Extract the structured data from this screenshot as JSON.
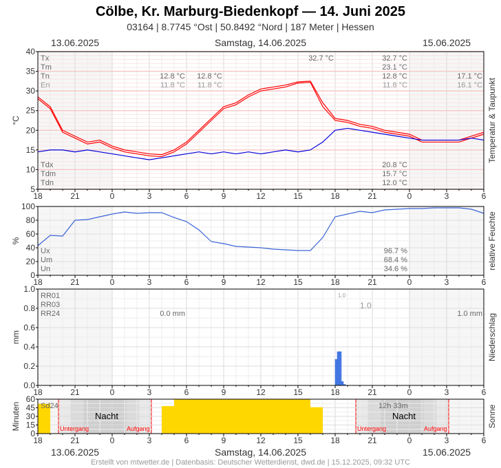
{
  "header": {
    "title": "Cölbe, Kr. Marburg-Biedenkopf  —  14. Juni 2025",
    "subtitle": "03164  |  8.7745 °Ost  |  50.8492 °Nord  |  187 Meter  |  Hessen",
    "date_left": "13.06.2025",
    "date_center": "Samstag, 14.06.2025",
    "date_right": "15.06.2025"
  },
  "footer": "Erstellt von mtwetter.de | Datenbasis: Deutscher Wetterdienst, dwd.de | 15.12.2025, 09:32 UTC",
  "colors": {
    "temperature": "#ff0000",
    "dewpoint": "#0000dd",
    "humidity": "#3a63d8",
    "precip": "#4a7ee8",
    "sun": "#ffd700",
    "sunset_line": "#ff0000"
  },
  "stats": {
    "temp": {
      "Tx": "Tx",
      "Tm": "Tm",
      "Tn": "Tn",
      "En": "En",
      "tx_day": "32.7 °C",
      "tx": "32.7 °C",
      "tm": "23.1 °C",
      "tn_a": "12.8 °C",
      "tn_b": "12.8 °C",
      "tn": "12.8 °C",
      "tn_next": "17.1 °C",
      "en_a": "11.8 °C",
      "en_b": "11.8 °C",
      "en": "11.8 °C",
      "en_next": "16.1 °C",
      "Tdx": "Tdx",
      "Tdm": "Tdm",
      "Tdn": "Tdn",
      "tdx": "20.8 °C",
      "tdm": "15.7 °C",
      "tdn": "12.0 °C"
    },
    "hum": {
      "Ux": "Ux",
      "Um": "Um",
      "Un": "Un",
      "ux": "96.7 %",
      "um": "68.4 %",
      "un": "34.6 %"
    },
    "rain": {
      "RR01": "RR01",
      "RR03": "RR03",
      "RR24": "RR24",
      "rr01": "1.0",
      "rr03": "1.0",
      "rr24_prev": "0.0 mm",
      "rr24": "1.0 mm"
    },
    "sun": {
      "Sd24": "Sd24",
      "duration": "12h 33m",
      "night": "Nacht",
      "sunset": "Untergang",
      "sunrise": "Aufgang"
    }
  },
  "chart_data": [
    {
      "type": "line",
      "ylabel": "°C",
      "right_label": "Temperatur & Taupunkt",
      "ylim": [
        5,
        40
      ],
      "yticks": [
        "5",
        "10",
        "15",
        "20",
        "25",
        "30",
        "35",
        "40"
      ],
      "x_tick_labels": [
        "18",
        "21",
        "0",
        "3",
        "6",
        "9",
        "12",
        "15",
        "18",
        "21",
        "0",
        "3",
        "6"
      ],
      "xlim": [
        "2025-06-13 18:00",
        "2025-06-15 06:00"
      ],
      "x": [
        "2025-06-13 18:00",
        "2025-06-13 19:00",
        "2025-06-13 20:00",
        "2025-06-13 21:00",
        "2025-06-13 22:00",
        "2025-06-13 23:00",
        "2025-06-14 00:00",
        "2025-06-14 01:00",
        "2025-06-14 02:00",
        "2025-06-14 03:00",
        "2025-06-14 04:00",
        "2025-06-14 05:00",
        "2025-06-14 06:00",
        "2025-06-14 07:00",
        "2025-06-14 08:00",
        "2025-06-14 09:00",
        "2025-06-14 10:00",
        "2025-06-14 11:00",
        "2025-06-14 12:00",
        "2025-06-14 13:00",
        "2025-06-14 14:00",
        "2025-06-14 15:00",
        "2025-06-14 16:00",
        "2025-06-14 17:00",
        "2025-06-14 18:00",
        "2025-06-14 19:00",
        "2025-06-14 20:00",
        "2025-06-14 21:00",
        "2025-06-14 22:00",
        "2025-06-14 23:00",
        "2025-06-15 00:00",
        "2025-06-15 01:00",
        "2025-06-15 02:00",
        "2025-06-15 03:00",
        "2025-06-15 04:00",
        "2025-06-15 05:00",
        "2025-06-15 06:00"
      ],
      "series": [
        {
          "color": "#ff0000",
          "values": [
            28.5,
            26,
            20,
            18.5,
            17,
            17.5,
            16,
            15,
            14.5,
            14,
            13.8,
            15,
            17,
            20,
            23,
            26,
            27,
            29,
            30.5,
            31,
            31.5,
            32.3,
            32.5,
            27,
            23,
            22.5,
            21.5,
            21,
            20,
            19.5,
            19,
            17.5,
            17.5,
            17.5,
            17.5,
            18.5,
            19.5
          ]
        },
        {
          "color": "#ff0000",
          "values": [
            28,
            25.5,
            19.5,
            18,
            16.5,
            17,
            15.5,
            14.5,
            14,
            13.5,
            13.3,
            14.5,
            16.5,
            19.5,
            22.5,
            25.5,
            26.5,
            28.5,
            30,
            30.5,
            31,
            32,
            32.2,
            26,
            22.5,
            22,
            21,
            20.5,
            19.5,
            19,
            18.5,
            17,
            17,
            17,
            17,
            18,
            19
          ]
        },
        {
          "color": "#0000dd",
          "values": [
            14.5,
            15,
            15,
            14.5,
            15,
            14.5,
            14,
            13.5,
            13,
            12.5,
            13,
            13.5,
            14,
            14.5,
            14,
            14.5,
            14,
            14.5,
            14,
            14.5,
            15,
            14.5,
            15,
            17,
            20,
            20.5,
            20,
            19.5,
            19,
            18.5,
            18,
            17.5,
            17.5,
            17.5,
            17.5,
            18,
            17.5
          ]
        }
      ]
    },
    {
      "type": "line",
      "ylabel": "%",
      "right_label": "relative Feuchte",
      "ylim": [
        0,
        100
      ],
      "yticks": [
        "0",
        "20",
        "40",
        "60",
        "80",
        "100"
      ],
      "x_tick_labels": [
        "18",
        "21",
        "0",
        "3",
        "6",
        "9",
        "12",
        "15",
        "18",
        "21",
        "0",
        "3",
        "6"
      ],
      "series": [
        {
          "color": "#3a63d8",
          "values": [
            43,
            58,
            57,
            80,
            81,
            85,
            89,
            92,
            90,
            91,
            91,
            84,
            78,
            66,
            49,
            46,
            42,
            41,
            40,
            38,
            37,
            36,
            36,
            55,
            85,
            89,
            93,
            91,
            95,
            96,
            97,
            97,
            98,
            98,
            98,
            96,
            90
          ]
        }
      ]
    },
    {
      "type": "bar",
      "ylabel": "mm",
      "right_label": "Niederschlag",
      "ylim": [
        0,
        1.0
      ],
      "yticks": [
        "0.0",
        "0.2",
        "0.4",
        "0.6",
        "0.8",
        "1.0"
      ],
      "x_tick_labels": [
        "18",
        "21",
        "0",
        "3",
        "6",
        "9",
        "12",
        "15",
        "18",
        "21",
        "0",
        "3",
        "6"
      ],
      "bar_interval_minutes": 10,
      "x": [
        "2025-06-14 18:00",
        "2025-06-14 18:10",
        "2025-06-14 18:20",
        "2025-06-14 18:30",
        "2025-06-14 18:40"
      ],
      "values": [
        0.27,
        0.35,
        0.35,
        0.04,
        0.01
      ]
    },
    {
      "type": "bar",
      "ylabel": "Minuten",
      "right_label": "Sonne",
      "ylim": [
        0,
        60
      ],
      "yticks": [
        "0",
        "15",
        "30",
        "45",
        "60"
      ],
      "x_tick_labels": [
        "18",
        "21",
        "0",
        "3",
        "6",
        "9",
        "12",
        "15",
        "18",
        "21",
        "0",
        "3",
        "6"
      ],
      "bar_interval_minutes": 60,
      "x": [
        "2025-06-13 18:00",
        "2025-06-14 04:00",
        "2025-06-14 05:00",
        "2025-06-14 06:00",
        "2025-06-14 07:00",
        "2025-06-14 08:00",
        "2025-06-14 09:00",
        "2025-06-14 10:00",
        "2025-06-14 11:00",
        "2025-06-14 12:00",
        "2025-06-14 13:00",
        "2025-06-14 14:00",
        "2025-06-14 15:00",
        "2025-06-14 16:00"
      ],
      "values": [
        52,
        48,
        60,
        60,
        60,
        60,
        60,
        60,
        60,
        60,
        60,
        60,
        60,
        46
      ],
      "nights": [
        [
          "2025-06-13 19:40",
          "2025-06-14 03:10"
        ],
        [
          "2025-06-14 19:40",
          "2025-06-15 03:10"
        ]
      ]
    }
  ]
}
